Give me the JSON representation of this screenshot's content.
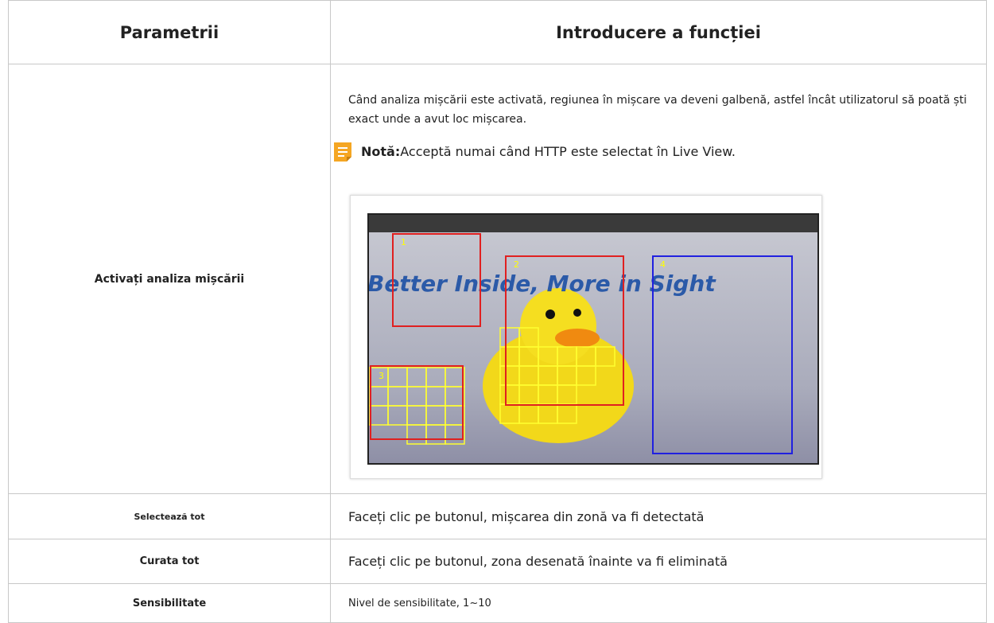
{
  "table": {
    "headers": [
      "Parametrii",
      "Introducere a funcției"
    ],
    "rows": [
      {
        "parameter": "Activați analiza mișcării",
        "description": "Când analiza mișcării este activată, regiunea în mișcare va deveni galbenă, astfel încât utilizatorul să poată ști exact unde a avut loc mișcarea.",
        "note": {
          "label": "Notă:",
          "text": "Acceptă numai când HTTP este selectat în Live View."
        },
        "image": {
          "caption": "Better Inside, More in Sight",
          "regions": [
            "1",
            "2",
            "3",
            "4"
          ]
        }
      },
      {
        "parameter": "Selectează tot",
        "description": "Faceți clic pe butonul, mișcarea din zonă va fi detectată"
      },
      {
        "parameter": "Curata tot",
        "description": "Faceți clic pe butonul, zona desenată înainte va fi eliminată"
      },
      {
        "parameter": "Sensibilitate",
        "description": "Nivel de sensibilitate, 1~10"
      }
    ]
  }
}
